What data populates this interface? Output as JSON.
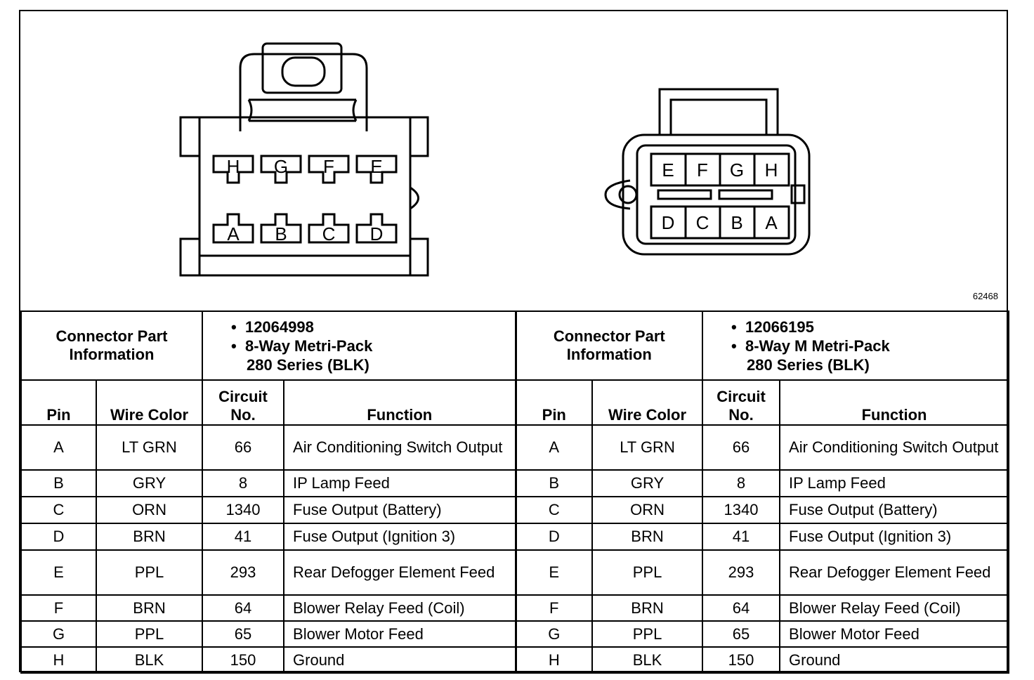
{
  "figure_number": "62468",
  "connectors": [
    {
      "info_label": "Connector Part Information",
      "part_number": "12064998",
      "description_line1": "8-Way Metri-Pack",
      "description_line2": "280 Series (BLK)",
      "diagram_pins_top": [
        "H",
        "G",
        "F",
        "E"
      ],
      "diagram_pins_bottom": [
        "A",
        "B",
        "C",
        "D"
      ]
    },
    {
      "info_label": "Connector Part Information",
      "part_number": "12066195",
      "description_line1": "8-Way M Metri-Pack",
      "description_line2": "280 Series (BLK)",
      "diagram_pins_top": [
        "E",
        "F",
        "G",
        "H"
      ],
      "diagram_pins_bottom": [
        "D",
        "C",
        "B",
        "A"
      ]
    }
  ],
  "columns": {
    "pin": "Pin",
    "wire_color": "Wire Color",
    "circuit_line1": "Circuit",
    "circuit_line2": "No.",
    "function": "Function"
  },
  "rows": [
    {
      "pin": "A",
      "color": "LT GRN",
      "circuit": "66",
      "function": "Air Conditioning Switch Output"
    },
    {
      "pin": "B",
      "color": "GRY",
      "circuit": "8",
      "function": "IP Lamp Feed"
    },
    {
      "pin": "C",
      "color": "ORN",
      "circuit": "1340",
      "function": "Fuse Output (Battery)"
    },
    {
      "pin": "D",
      "color": "BRN",
      "circuit": "41",
      "function": "Fuse Output (Ignition 3)"
    },
    {
      "pin": "E",
      "color": "PPL",
      "circuit": "293",
      "function": "Rear Defogger Element Feed"
    },
    {
      "pin": "F",
      "color": "BRN",
      "circuit": "64",
      "function": "Blower Relay Feed (Coil)"
    },
    {
      "pin": "G",
      "color": "PPL",
      "circuit": "65",
      "function": "Blower Motor Feed"
    },
    {
      "pin": "H",
      "color": "BLK",
      "circuit": "150",
      "function": "Ground"
    }
  ]
}
